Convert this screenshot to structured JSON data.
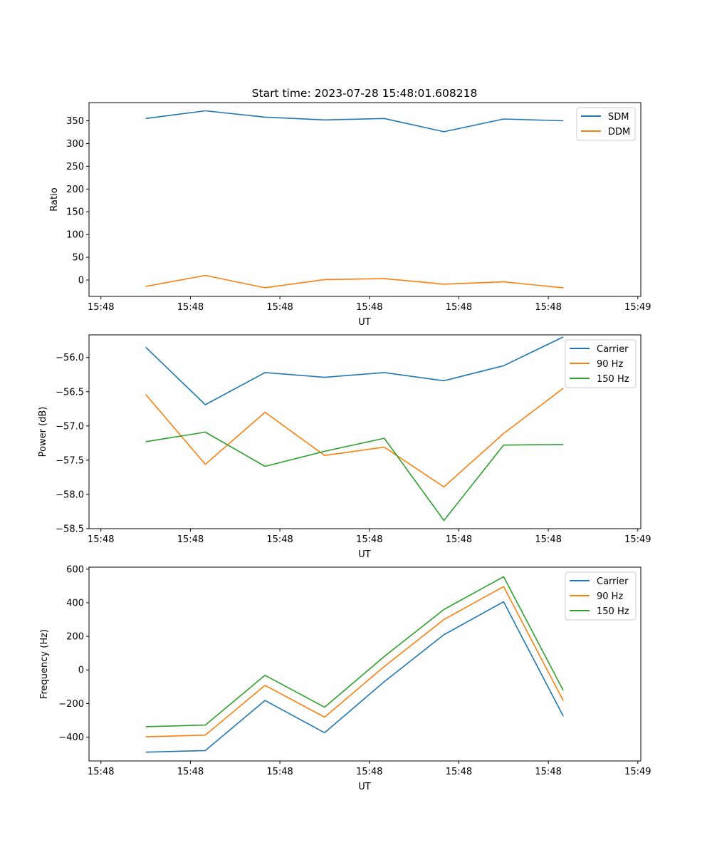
{
  "colors": {
    "blue": "#1f77b4",
    "orange": "#ff7f0e",
    "green": "#2ca02c"
  },
  "chart_data": [
    {
      "type": "line",
      "title": "Start time: 2023-07-28 15:48:01.608218",
      "xlabel": "UT",
      "ylabel": "Ratio",
      "xlim": [
        -0.95,
        8.3
      ],
      "ylim": [
        -36,
        390
      ],
      "xtick_positions": [
        -0.75,
        0.75,
        2.25,
        3.75,
        5.25,
        6.75,
        8.25
      ],
      "xtick_labels": [
        "15:48",
        "15:48",
        "15:48",
        "15:48",
        "15:48",
        "15:48",
        "15:49"
      ],
      "yticks": [
        0,
        50,
        100,
        150,
        200,
        250,
        300,
        350
      ],
      "legend_position": "top-right",
      "x": [
        0,
        1,
        2,
        3,
        4,
        5,
        6,
        7
      ],
      "series": [
        {
          "name": "SDM",
          "color": "#1f77b4",
          "values": [
            355,
            372,
            358,
            352,
            355,
            326,
            354,
            350
          ]
        },
        {
          "name": "DDM",
          "color": "#ff7f0e",
          "values": [
            -14,
            10,
            -17,
            1,
            3,
            -9,
            -4,
            -17
          ]
        }
      ]
    },
    {
      "type": "line",
      "title": "",
      "xlabel": "UT",
      "ylabel": "Power (dB)",
      "xlim": [
        -0.95,
        8.3
      ],
      "ylim": [
        -58.5,
        -55.67
      ],
      "xtick_positions": [
        -0.75,
        0.75,
        2.25,
        3.75,
        5.25,
        6.75,
        8.25
      ],
      "xtick_labels": [
        "15:48",
        "15:48",
        "15:48",
        "15:48",
        "15:48",
        "15:48",
        "15:49"
      ],
      "yticks": [
        -58.5,
        -58.0,
        -57.5,
        -57.0,
        -56.5,
        -56.0
      ],
      "ytick_labels": [
        "−58.5",
        "−58.0",
        "−57.5",
        "−57.0",
        "−56.5",
        "−56.0"
      ],
      "legend_position": "top-right",
      "x": [
        0,
        1,
        2,
        3,
        4,
        5,
        6,
        7
      ],
      "series": [
        {
          "name": "Carrier",
          "color": "#1f77b4",
          "values": [
            -55.85,
            -56.69,
            -56.22,
            -56.29,
            -56.22,
            -56.34,
            -56.12,
            -55.7
          ]
        },
        {
          "name": "90 Hz",
          "color": "#ff7f0e",
          "values": [
            -56.54,
            -57.56,
            -56.8,
            -57.43,
            -57.31,
            -57.89,
            -57.11,
            -56.45
          ]
        },
        {
          "name": "150 Hz",
          "color": "#2ca02c",
          "values": [
            -57.23,
            -57.09,
            -57.59,
            -57.37,
            -57.18,
            -58.38,
            -57.28,
            -57.27
          ]
        }
      ]
    },
    {
      "type": "line",
      "title": "",
      "xlabel": "UT",
      "ylabel": "Frequency (Hz)",
      "xlim": [
        -0.95,
        8.3
      ],
      "ylim": [
        -542,
        612
      ],
      "xtick_positions": [
        -0.75,
        0.75,
        2.25,
        3.75,
        5.25,
        6.75,
        8.25
      ],
      "xtick_labels": [
        "15:48",
        "15:48",
        "15:48",
        "15:48",
        "15:48",
        "15:48",
        "15:49"
      ],
      "yticks": [
        -400,
        -200,
        0,
        200,
        400,
        600
      ],
      "ytick_labels": [
        "−400",
        "−200",
        "0",
        "200",
        "400",
        "600"
      ],
      "legend_position": "top-right",
      "x": [
        0,
        1,
        2,
        3,
        4,
        5,
        6,
        7
      ],
      "series": [
        {
          "name": "Carrier",
          "color": "#1f77b4",
          "values": [
            -490,
            -480,
            -182,
            -374,
            -70,
            210,
            406,
            -275
          ]
        },
        {
          "name": "90 Hz",
          "color": "#ff7f0e",
          "values": [
            -398,
            -388,
            -92,
            -281,
            20,
            300,
            496,
            -183
          ]
        },
        {
          "name": "150 Hz",
          "color": "#2ca02c",
          "values": [
            -338,
            -328,
            -32,
            -222,
            80,
            360,
            555,
            -122
          ]
        }
      ]
    }
  ]
}
